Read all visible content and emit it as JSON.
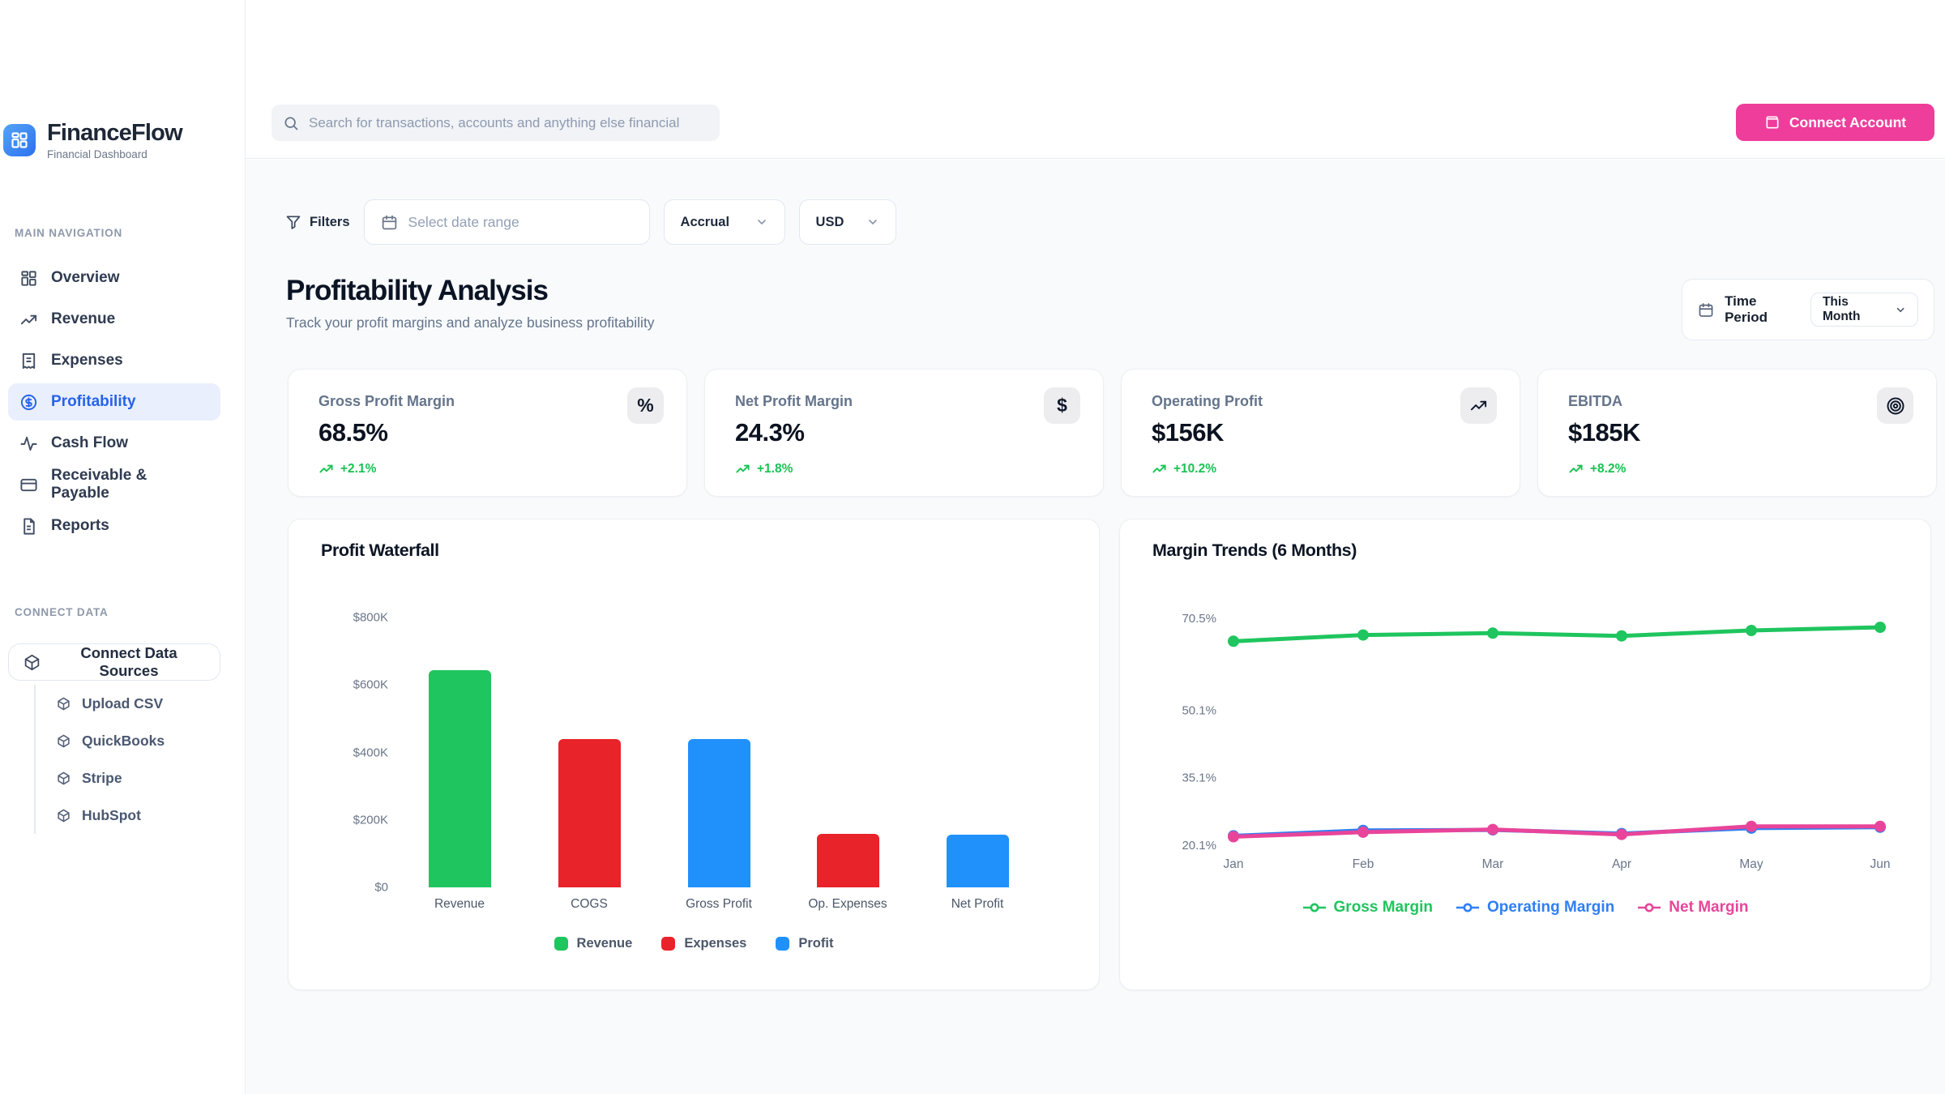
{
  "brand": {
    "name": "FinanceFlow",
    "tagline": "Financial Dashboard"
  },
  "header": {
    "search_placeholder": "Search for transactions, accounts and anything else financial",
    "connect_account_label": "Connect Account"
  },
  "sidebar": {
    "main_nav_label": "MAIN NAVIGATION",
    "items": [
      {
        "label": "Overview",
        "icon": "grid",
        "active": false
      },
      {
        "label": "Revenue",
        "icon": "trending-up",
        "active": false
      },
      {
        "label": "Expenses",
        "icon": "receipt",
        "active": false
      },
      {
        "label": "Profitability",
        "icon": "dollar-circle",
        "active": true
      },
      {
        "label": "Cash Flow",
        "icon": "activity",
        "active": false
      },
      {
        "label": "Receivable & Payable",
        "icon": "credit-card",
        "active": false
      },
      {
        "label": "Reports",
        "icon": "file-text",
        "active": false
      }
    ],
    "connect_label": "CONNECT DATA",
    "connect_button": "Connect Data Sources",
    "connect_items": [
      "Upload CSV",
      "QuickBooks",
      "Stripe",
      "HubSpot"
    ]
  },
  "filters": {
    "filters_label": "Filters",
    "date_range_placeholder": "Select date range",
    "basis_value": "Accrual",
    "currency_value": "USD"
  },
  "page": {
    "title": "Profitability Analysis",
    "subtitle": "Track your profit margins and analyze business profitability",
    "time_period_label": "Time Period",
    "time_period_value": "This Month"
  },
  "kpis": [
    {
      "label": "Gross Profit Margin",
      "value": "68.5%",
      "change": "+2.1%",
      "icon": "percent"
    },
    {
      "label": "Net Profit Margin",
      "value": "24.3%",
      "change": "+1.8%",
      "icon": "dollar"
    },
    {
      "label": "Operating Profit",
      "value": "$156K",
      "change": "+10.2%",
      "icon": "trending-up"
    },
    {
      "label": "EBITDA",
      "value": "$185K",
      "change": "+8.2%",
      "icon": "target"
    }
  ],
  "colors": {
    "green": "#1fc55e",
    "red": "#e8232a",
    "blue": "#2090fb",
    "line_blue": "#2f7ff5",
    "pink": "#e8459a",
    "accent": "#2563eb",
    "button_pink": "#ee3d9b"
  },
  "chart_data": [
    {
      "type": "bar",
      "title": "Profit Waterfall",
      "categories": [
        "Revenue",
        "COGS",
        "Gross Profit",
        "Op. Expenses",
        "Net Profit"
      ],
      "values": [
        645000,
        440000,
        440000,
        158000,
        156000
      ],
      "bar_colors": [
        "#1fc55e",
        "#e8232a",
        "#2090fb",
        "#e8232a",
        "#2090fb"
      ],
      "y_ticks": [
        "$800K",
        "$600K",
        "$400K",
        "$200K",
        "$0"
      ],
      "y_tick_values": [
        800000,
        600000,
        400000,
        200000,
        0
      ],
      "ylim": [
        0,
        800000
      ],
      "grid": false,
      "legend_position": "bottom",
      "legend": [
        {
          "label": "Revenue",
          "color": "#1fc55e"
        },
        {
          "label": "Expenses",
          "color": "#e8232a"
        },
        {
          "label": "Profit",
          "color": "#2090fb"
        }
      ]
    },
    {
      "type": "line",
      "title": "Margin Trends (6 Months)",
      "x": [
        "Jan",
        "Feb",
        "Mar",
        "Apr",
        "May",
        "Jun"
      ],
      "y_ticks": [
        "70.5%",
        "50.1%",
        "35.1%",
        "20.1%"
      ],
      "y_tick_values": [
        70.5,
        50.1,
        35.1,
        20.1
      ],
      "ylim": [
        18.5,
        72.5
      ],
      "grid": false,
      "legend_position": "bottom",
      "series": [
        {
          "name": "Gross Margin",
          "color": "#1fc55e",
          "values": [
            65.4,
            66.8,
            67.2,
            66.6,
            67.8,
            68.5
          ]
        },
        {
          "name": "Operating Margin",
          "color": "#2f7ff5",
          "values": [
            22.2,
            23.4,
            23.5,
            22.7,
            23.9,
            24.1
          ]
        },
        {
          "name": "Net Margin",
          "color": "#e8459a",
          "values": [
            22.0,
            23.0,
            23.6,
            22.5,
            24.3,
            24.3
          ]
        }
      ]
    }
  ]
}
